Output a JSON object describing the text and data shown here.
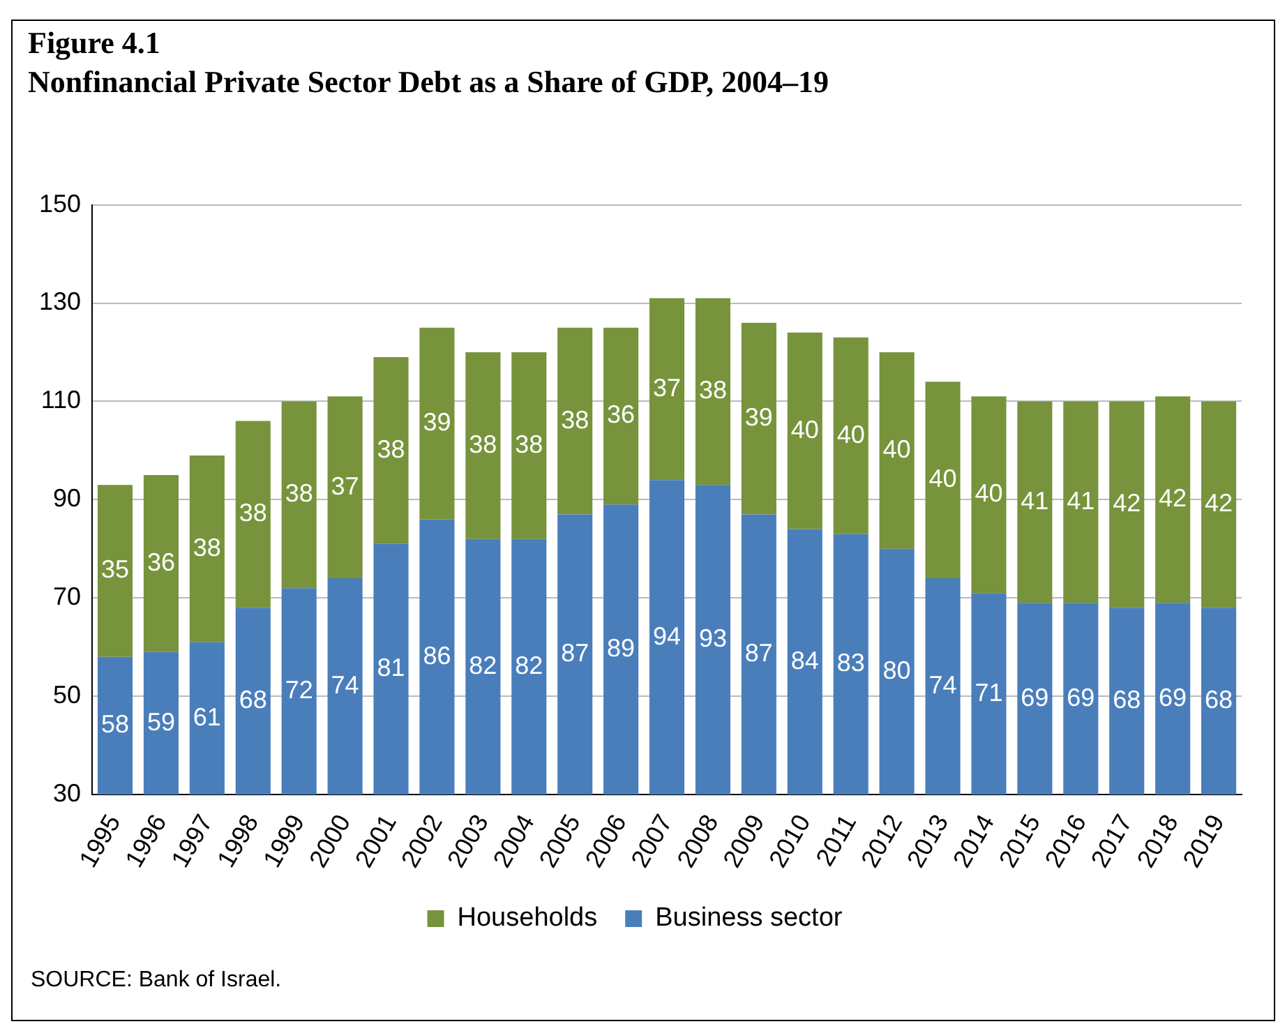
{
  "chart_data": {
    "type": "bar",
    "title": "Figure 4.1",
    "subtitle": "Nonfinancial Private Sector Debt as a Share of GDP, 2004–19",
    "categories": [
      "1995",
      "1996",
      "1997",
      "1998",
      "1999",
      "2000",
      "2001",
      "2002",
      "2003",
      "2004",
      "2005",
      "2006",
      "2007",
      "2008",
      "2009",
      "2010",
      "2011",
      "2012",
      "2013",
      "2014",
      "2015",
      "2016",
      "2017",
      "2018",
      "2019"
    ],
    "series": [
      {
        "name": "Business sector",
        "color": "#4a7ebb",
        "values": [
          58,
          59,
          61,
          68,
          72,
          74,
          81,
          86,
          82,
          82,
          87,
          89,
          94,
          93,
          87,
          84,
          83,
          80,
          74,
          71,
          69,
          69,
          68,
          69,
          68
        ]
      },
      {
        "name": "Households",
        "color": "#77933c",
        "values": [
          35,
          36,
          38,
          38,
          38,
          37,
          38,
          39,
          38,
          38,
          38,
          36,
          37,
          38,
          39,
          40,
          40,
          40,
          40,
          40,
          41,
          41,
          42,
          42,
          42
        ]
      }
    ],
    "stacked": true,
    "ylim": [
      30,
      150
    ],
    "yticks": [
      30,
      50,
      70,
      90,
      110,
      130,
      150
    ],
    "grid": "y",
    "legend": "bottom",
    "data_labels": true,
    "annotations": [
      "SOURCE: Bank of Israel."
    ]
  }
}
